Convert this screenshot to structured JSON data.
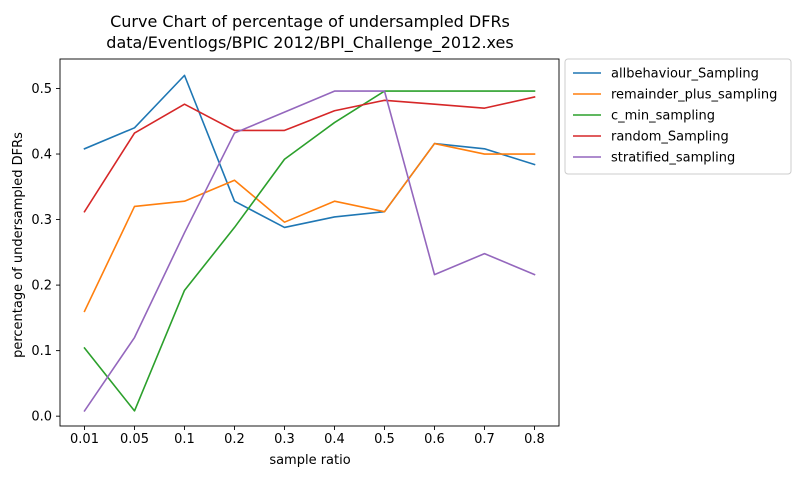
{
  "chart_data": {
    "type": "line",
    "title_lines": [
      "Curve Chart of percentage of undersampled DFRs",
      "data/Eventlogs/BPIC 2012/BPI_Challenge_2012.xes"
    ],
    "xlabel": "sample ratio",
    "ylabel": "percentage of undersampled DFRs",
    "categories": [
      "0.01",
      "0.05",
      "0.1",
      "0.2",
      "0.3",
      "0.4",
      "0.5",
      "0.6",
      "0.7",
      "0.8"
    ],
    "ylim": [
      -0.015,
      0.545
    ],
    "yticks": [
      0.0,
      0.1,
      0.2,
      0.3,
      0.4,
      0.5
    ],
    "ytick_labels": [
      "0.0",
      "0.1",
      "0.2",
      "0.3",
      "0.4",
      "0.5"
    ],
    "grid": false,
    "legend_position": "outside upper right",
    "series": [
      {
        "name": "allbehaviour_Sampling",
        "color": "#1f77b4",
        "values": [
          0.408,
          0.44,
          0.52,
          0.328,
          0.288,
          0.304,
          0.312,
          0.416,
          0.408,
          0.384
        ]
      },
      {
        "name": "remainder_plus_sampling",
        "color": "#ff7f0e",
        "values": [
          0.16,
          0.32,
          0.328,
          0.36,
          0.296,
          0.328,
          0.312,
          0.416,
          0.4,
          0.4
        ]
      },
      {
        "name": "c_min_sampling",
        "color": "#2ca02c",
        "values": [
          0.104,
          0.008,
          0.192,
          0.288,
          0.392,
          0.448,
          0.496,
          0.496,
          0.496,
          0.496
        ]
      },
      {
        "name": "random_Sampling",
        "color": "#d62728",
        "values": [
          0.312,
          0.432,
          0.476,
          0.436,
          0.436,
          0.466,
          0.482,
          0.476,
          0.47,
          0.487
        ]
      },
      {
        "name": "stratified_sampling",
        "color": "#9467bd",
        "values": [
          0.008,
          0.12,
          0.28,
          0.432,
          0.464,
          0.496,
          0.496,
          0.216,
          0.248,
          0.216
        ]
      }
    ]
  }
}
